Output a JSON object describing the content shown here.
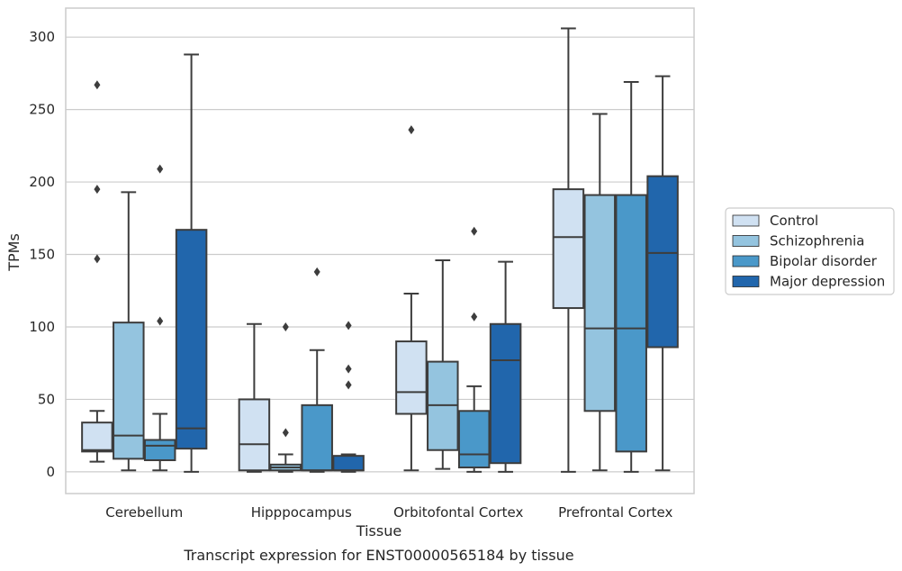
{
  "chart_data": {
    "type": "box",
    "title": "",
    "caption": "Transcript expression for ENST00000565184 by tissue",
    "xlabel": "Tissue",
    "ylabel": "TPMs",
    "ylim": [
      -15,
      320
    ],
    "yticks": [
      0,
      50,
      100,
      150,
      200,
      250,
      300
    ],
    "grid": true,
    "legend_position": "right",
    "categories": [
      "Cerebellum",
      "Hipppocampus",
      "Orbitofontal Cortex",
      "Prefrontal Cortex"
    ],
    "series": [
      {
        "name": "Control",
        "color": "#d0e1f2",
        "boxes": [
          {
            "whislo": 7,
            "q1": 14,
            "med": 15,
            "q3": 34,
            "whishi": 42,
            "fliers": [
              147,
              195,
              267
            ]
          },
          {
            "whislo": 0,
            "q1": 1,
            "med": 19,
            "q3": 50,
            "whishi": 102,
            "fliers": []
          },
          {
            "whislo": 1,
            "q1": 40,
            "med": 55,
            "q3": 90,
            "whishi": 123,
            "fliers": [
              236
            ]
          },
          {
            "whislo": 0,
            "q1": 113,
            "med": 162,
            "q3": 195,
            "whishi": 306,
            "fliers": []
          }
        ]
      },
      {
        "name": "Schizophrenia",
        "color": "#94c4df",
        "boxes": [
          {
            "whislo": 1,
            "q1": 9,
            "med": 25,
            "q3": 103,
            "whishi": 193,
            "fliers": []
          },
          {
            "whislo": 0,
            "q1": 1,
            "med": 3,
            "q3": 5,
            "whishi": 12,
            "fliers": [
              27,
              100
            ]
          },
          {
            "whislo": 2,
            "q1": 15,
            "med": 46,
            "q3": 76,
            "whishi": 146,
            "fliers": []
          },
          {
            "whislo": 1,
            "q1": 42,
            "med": 99,
            "q3": 191,
            "whishi": 247,
            "fliers": []
          }
        ]
      },
      {
        "name": "Bipolar disorder",
        "color": "#4a98c9",
        "boxes": [
          {
            "whislo": 1,
            "q1": 8,
            "med": 18,
            "q3": 22,
            "whishi": 40,
            "fliers": [
              104,
              209
            ]
          },
          {
            "whislo": 0,
            "q1": 1,
            "med": 1,
            "q3": 46,
            "whishi": 84,
            "fliers": [
              138
            ]
          },
          {
            "whislo": 0,
            "q1": 3,
            "med": 12,
            "q3": 42,
            "whishi": 59,
            "fliers": [
              107,
              166
            ]
          },
          {
            "whislo": 0,
            "q1": 14,
            "med": 99,
            "q3": 191,
            "whishi": 269,
            "fliers": []
          }
        ]
      },
      {
        "name": "Major depression",
        "color": "#2166ac",
        "boxes": [
          {
            "whislo": 0,
            "q1": 16,
            "med": 30,
            "q3": 167,
            "whishi": 288,
            "fliers": []
          },
          {
            "whislo": 0,
            "q1": 1,
            "med": 1,
            "q3": 11,
            "whishi": 12,
            "fliers": [
              60,
              71,
              101
            ]
          },
          {
            "whislo": 0,
            "q1": 6,
            "med": 77,
            "q3": 102,
            "whishi": 145,
            "fliers": []
          },
          {
            "whislo": 1,
            "q1": 86,
            "med": 151,
            "q3": 204,
            "whishi": 273,
            "fliers": []
          }
        ]
      }
    ]
  }
}
